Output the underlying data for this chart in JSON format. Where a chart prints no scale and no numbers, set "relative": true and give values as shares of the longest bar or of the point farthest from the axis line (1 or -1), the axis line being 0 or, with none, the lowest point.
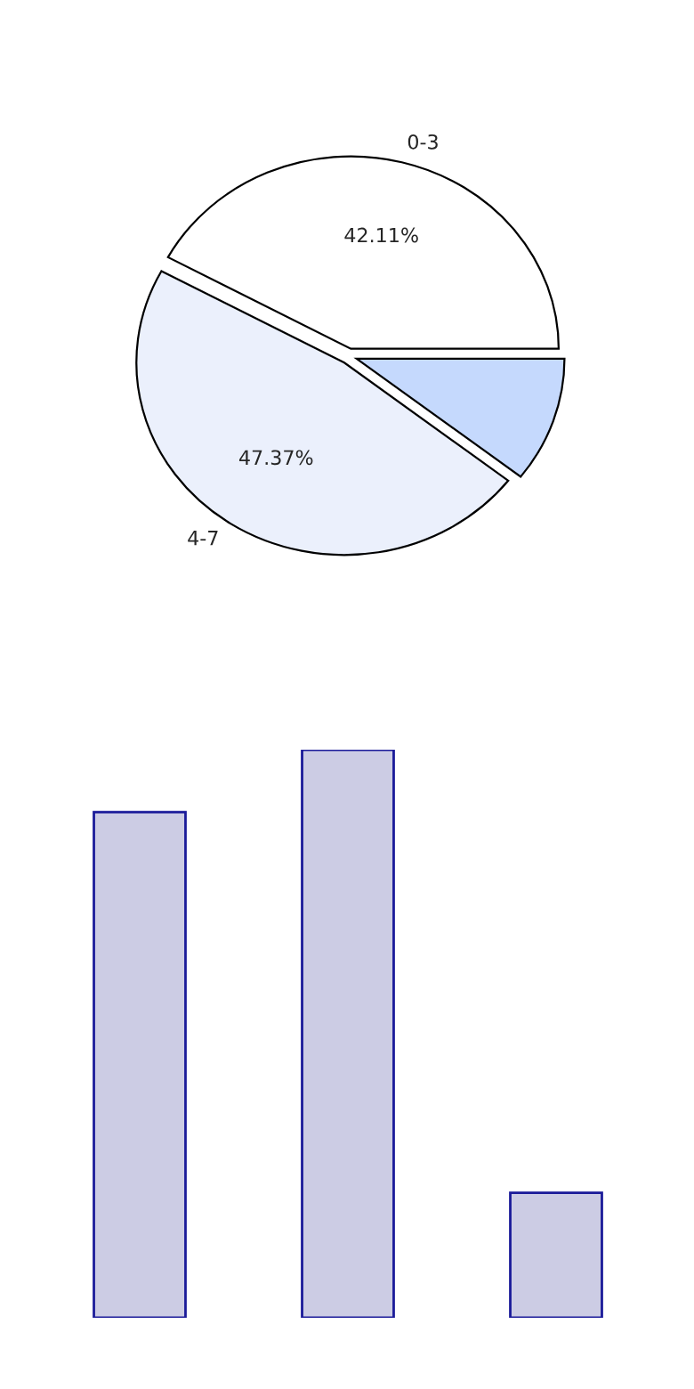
{
  "chart_data": [
    {
      "type": "pie",
      "categories": [
        "0-3",
        "4-7",
        null
      ],
      "values": [
        42.11,
        47.37,
        10.52
      ],
      "colors": [
        "#ffffff",
        "#ebf0fc",
        "#c5d9fd"
      ],
      "value_labels": [
        "42.11%",
        "47.37%",
        null
      ]
    },
    {
      "type": "bar",
      "categories": [
        null,
        null,
        null
      ],
      "values": [
        0.89,
        1,
        0.22
      ],
      "color": "#ccccE4",
      "relative": true
    }
  ]
}
